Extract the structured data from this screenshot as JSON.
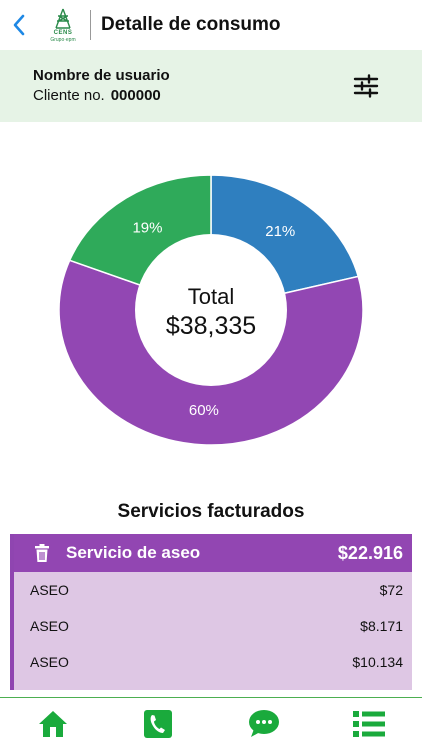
{
  "header": {
    "title": "Detalle de consumo",
    "logo_text": "CENS",
    "logo_sub": "Grupo·epm"
  },
  "user": {
    "name": "Nombre de usuario",
    "client_label": "Cliente no.",
    "client_number": "000000"
  },
  "chart_data": {
    "type": "pie",
    "center_label": "Total",
    "center_value": "$38,335",
    "slices": [
      {
        "label": "21%",
        "value": 21,
        "color": "#2f7fbf"
      },
      {
        "label": "60%",
        "value": 60,
        "color": "#9247b3"
      },
      {
        "label": "19%",
        "value": 19,
        "color": "#2faa5a"
      }
    ]
  },
  "services": {
    "title": "Servicios facturados",
    "card": {
      "name": "Servicio de aseo",
      "total": "$22.916",
      "rows": [
        {
          "label": "ASEO",
          "value": "$72"
        },
        {
          "label": "ASEO",
          "value": "$8.171"
        },
        {
          "label": "ASEO",
          "value": "$10.134"
        }
      ]
    }
  },
  "colors": {
    "accent_green": "#1aaa3c",
    "accent_purple": "#9246b2",
    "back_blue": "#1e88e5"
  },
  "icons": [
    "chevron-left-icon",
    "filter-sliders-icon",
    "trash-icon",
    "home-icon",
    "phone-icon",
    "chat-icon",
    "list-icon"
  ]
}
